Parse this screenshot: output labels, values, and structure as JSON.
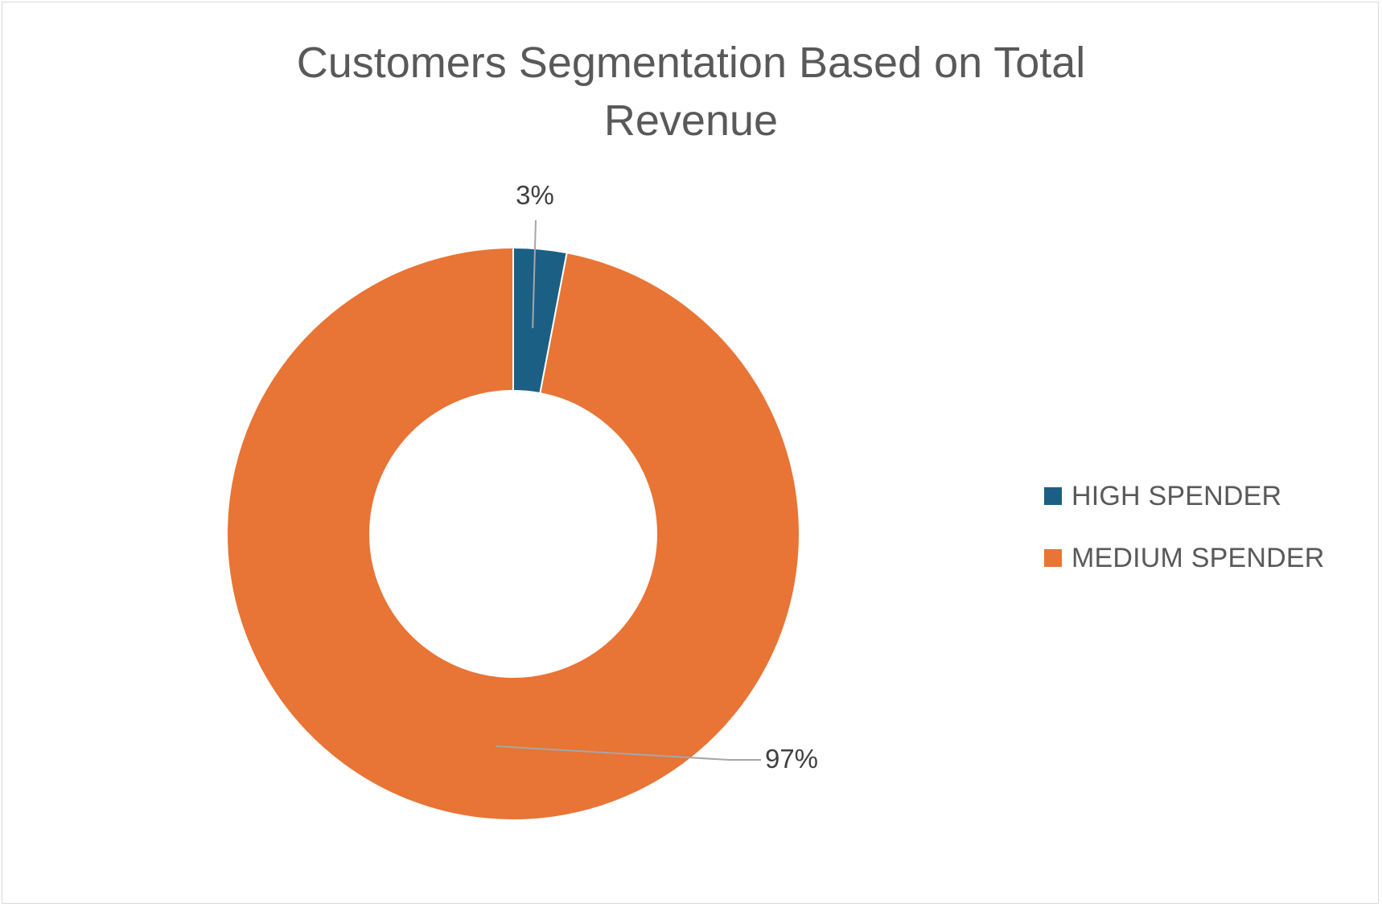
{
  "chart_data": {
    "type": "pie",
    "variant": "doughnut",
    "title": "Customers Segmentation Based on Total Revenue",
    "slices": [
      {
        "label": "HIGH SPENDER",
        "value": 3,
        "display": "3%",
        "color": "#1b5f85"
      },
      {
        "label": "MEDIUM SPENDER",
        "value": 97,
        "display": "97%",
        "color": "#e87435"
      }
    ],
    "legend_position": "right",
    "data_labels": "outside-with-leader-lines"
  }
}
